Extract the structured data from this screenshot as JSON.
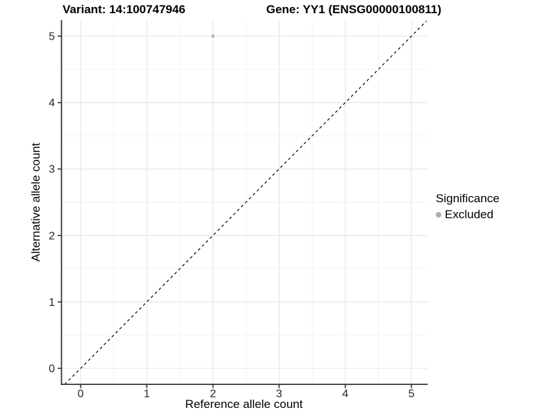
{
  "header": {
    "title_left": "Variant: 14:100747946",
    "title_right": "Gene: YY1 (ENSG00000100811)"
  },
  "chart_data": {
    "type": "scatter",
    "xlabel": "Reference allele count",
    "ylabel": "Alternative allele count",
    "x_ticks": [
      0,
      1,
      2,
      3,
      4,
      5
    ],
    "y_ticks": [
      0,
      1,
      2,
      3,
      4,
      5
    ],
    "xlim": [
      -0.25,
      5.25
    ],
    "ylim": [
      -0.25,
      5.25
    ],
    "grid": "major and minor (0.5 steps)",
    "points": [
      {
        "x": 2,
        "y": 5,
        "series": "Excluded"
      }
    ],
    "reference_line": {
      "style": "dashed",
      "slope": 1,
      "intercept": 0,
      "color": "#000000"
    },
    "legend": {
      "title": "Significance",
      "position": "right",
      "entries": [
        {
          "label": "Excluded",
          "color": "#adadad"
        }
      ]
    },
    "colors": {
      "point": "#b3b3b3",
      "grid_major": "#e4e4e4",
      "grid_minor": "#f2f2f2",
      "axis": "#333333",
      "tick_text": "#262626"
    }
  }
}
